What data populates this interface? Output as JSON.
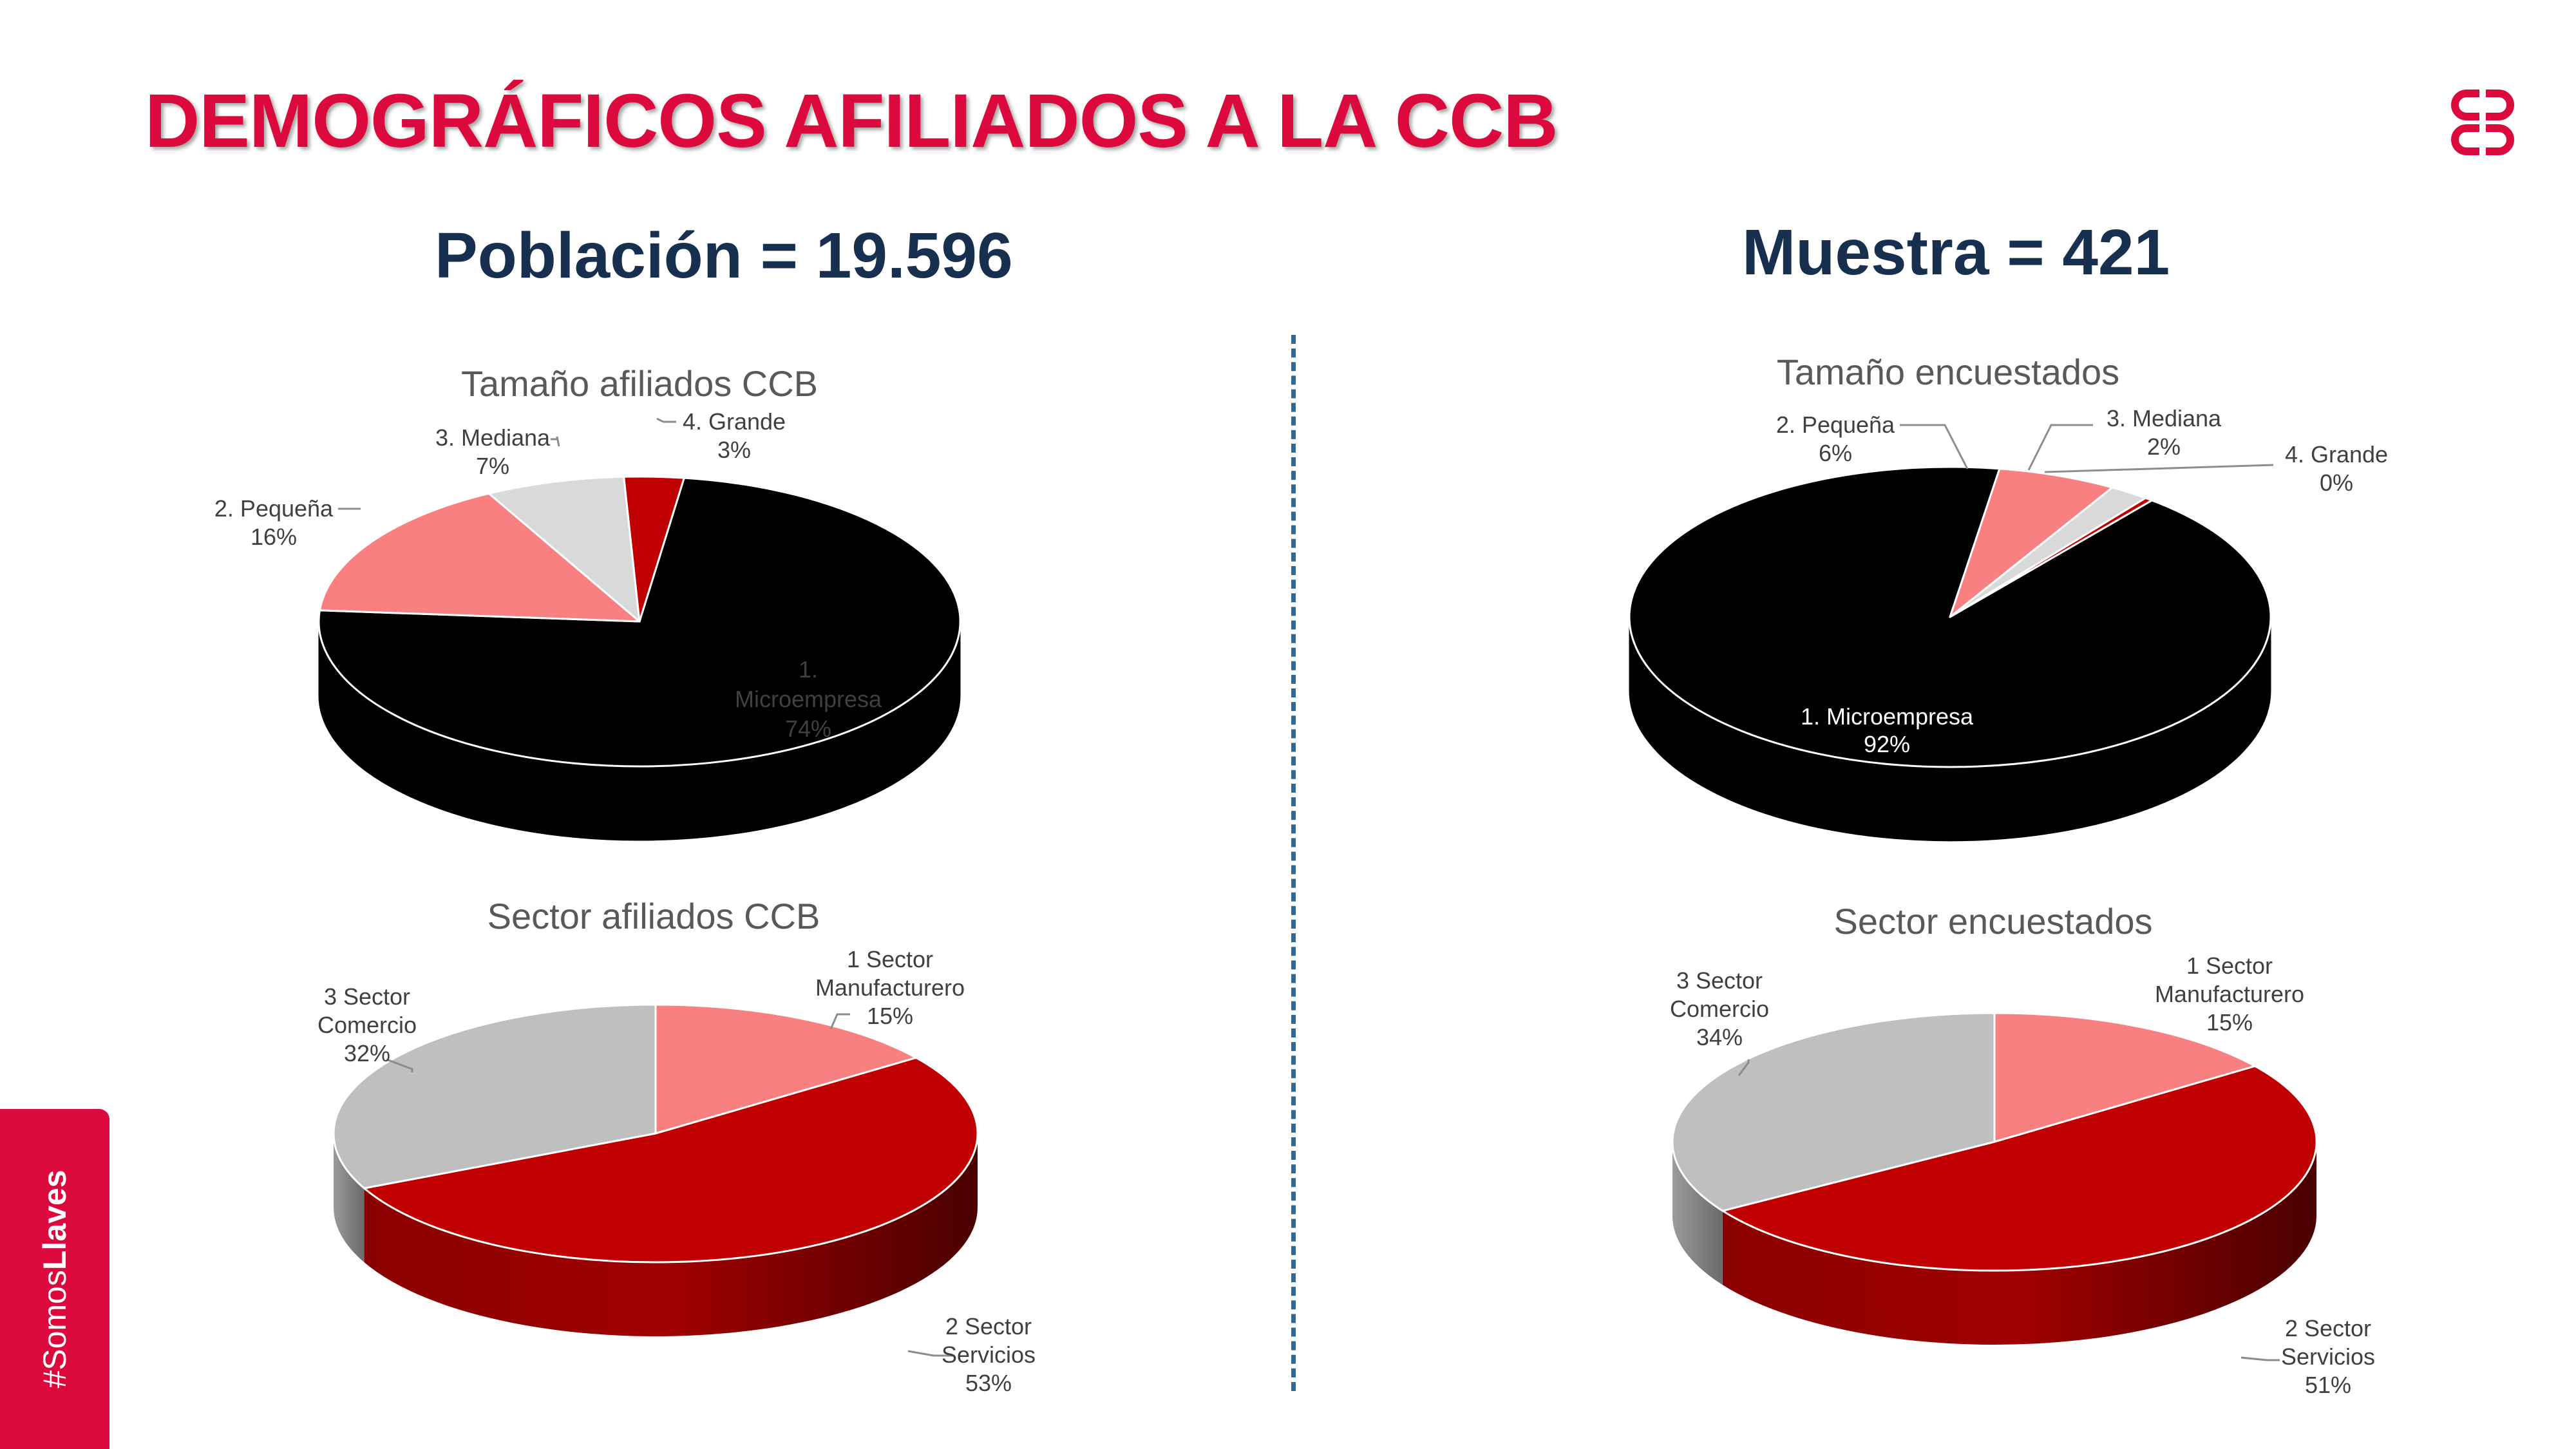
{
  "slide": {
    "title": "DEMOGRÁFICOS AFILIADOS A LA CCB",
    "left_heading": "Población = 19.596",
    "right_heading": "Muestra = 421",
    "sidebar_hashtag_prefix": "#Somos",
    "sidebar_hashtag_bold": "Llaves"
  },
  "chart_data": [
    {
      "id": "tamano-afiliados",
      "type": "pie",
      "style": "3d",
      "title": "Tamaño afiliados CCB",
      "categories": [
        "1. Microempresa",
        "2. Pequeña",
        "3. Mediana",
        "4. Grande"
      ],
      "values": [
        74,
        16,
        7,
        3
      ],
      "labels": [
        "74%",
        "16%",
        "7%",
        "3%"
      ],
      "colors": [
        "#000000",
        "#f98080",
        "#d9d9d9",
        "#c00000"
      ]
    },
    {
      "id": "tamano-encuestados",
      "type": "pie",
      "style": "3d",
      "title": "Tamaño encuestados",
      "categories": [
        "1. Microempresa",
        "2. Pequeña",
        "3. Mediana",
        "4. Grande"
      ],
      "values": [
        92,
        6,
        2,
        0.4
      ],
      "labels": [
        "92%",
        "6%",
        "2%",
        "0%"
      ],
      "colors": [
        "#000000",
        "#f98080",
        "#d9d9d9",
        "#c00000"
      ]
    },
    {
      "id": "sector-afiliados",
      "type": "pie",
      "style": "3d",
      "title": "Sector afiliados CCB",
      "categories": [
        "1 Sector Manufacturero",
        "2 Sector Servicios",
        "3 Sector Comercio"
      ],
      "values": [
        15,
        53,
        32
      ],
      "labels": [
        "15%",
        "53%",
        "32%"
      ],
      "colors": [
        "#f98080",
        "#c00000",
        "#bfbfbf"
      ]
    },
    {
      "id": "sector-encuestados",
      "type": "pie",
      "style": "3d",
      "title": "Sector encuestados",
      "categories": [
        "1 Sector Manufacturero",
        "2 Sector Servicios",
        "3 Sector Comercio"
      ],
      "values": [
        15,
        51,
        34
      ],
      "labels": [
        "15%",
        "51%",
        "34%"
      ],
      "colors": [
        "#f98080",
        "#c00000",
        "#bfbfbf"
      ]
    }
  ]
}
